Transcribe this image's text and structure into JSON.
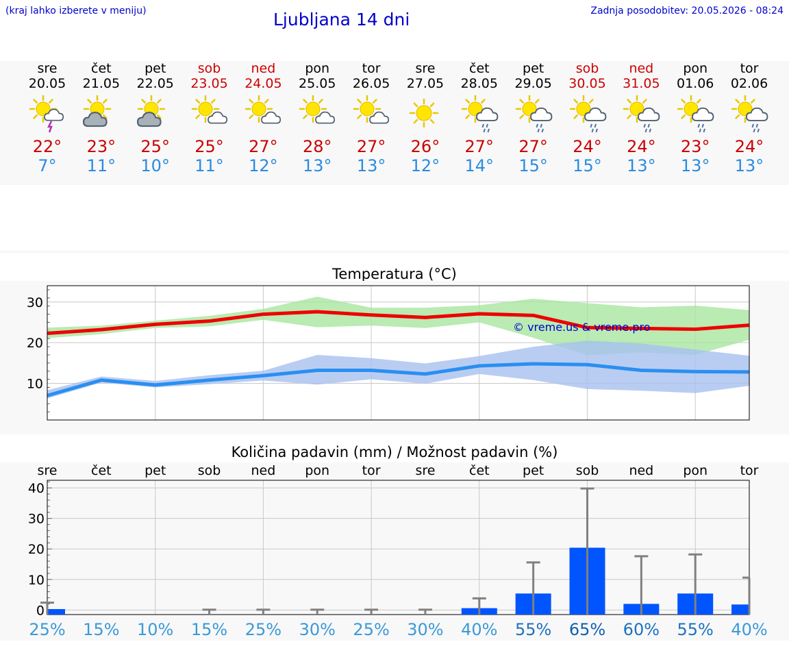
{
  "header": {
    "hint": "(kraj lahko izberete v meniju)",
    "title": "Ljubljana 14 dni",
    "updated": "Zadnja posodobitev: 20.05.2026 - 08:24"
  },
  "forecast": [
    {
      "day": "sre",
      "date": "20.05",
      "icon": "sun-cloud-thunder",
      "max": "22°",
      "min": "7°",
      "weekend": false
    },
    {
      "day": "čet",
      "date": "21.05",
      "icon": "sun-cloud",
      "max": "23°",
      "min": "11°",
      "weekend": false
    },
    {
      "day": "pet",
      "date": "22.05",
      "icon": "sun-cloud",
      "max": "25°",
      "min": "10°",
      "weekend": false
    },
    {
      "day": "sob",
      "date": "23.05",
      "icon": "sun-small-cloud",
      "max": "25°",
      "min": "11°",
      "weekend": true
    },
    {
      "day": "ned",
      "date": "24.05",
      "icon": "sun-small-cloud",
      "max": "27°",
      "min": "12°",
      "weekend": true
    },
    {
      "day": "pon",
      "date": "25.05",
      "icon": "sun-small-cloud",
      "max": "28°",
      "min": "13°",
      "weekend": false
    },
    {
      "day": "tor",
      "date": "26.05",
      "icon": "sun-small-cloud",
      "max": "27°",
      "min": "13°",
      "weekend": false
    },
    {
      "day": "sre",
      "date": "27.05",
      "icon": "sun",
      "max": "26°",
      "min": "12°",
      "weekend": false
    },
    {
      "day": "čet",
      "date": "28.05",
      "icon": "sun-cloud-rain",
      "max": "27°",
      "min": "14°",
      "weekend": false
    },
    {
      "day": "pet",
      "date": "29.05",
      "icon": "sun-cloud-rain",
      "max": "27°",
      "min": "15°",
      "weekend": false
    },
    {
      "day": "sob",
      "date": "30.05",
      "icon": "sun-cloud-rain",
      "max": "24°",
      "min": "15°",
      "weekend": true
    },
    {
      "day": "ned",
      "date": "31.05",
      "icon": "sun-cloud-rain",
      "max": "24°",
      "min": "13°",
      "weekend": true
    },
    {
      "day": "pon",
      "date": "01.06",
      "icon": "sun-cloud-rain",
      "max": "23°",
      "min": "13°",
      "weekend": false
    },
    {
      "day": "tor",
      "date": "02.06",
      "icon": "sun-cloud-rain",
      "max": "24°",
      "min": "13°",
      "weekend": false
    }
  ],
  "chart_data": [
    {
      "type": "line",
      "title": "Temperatura (°C)",
      "watermark": "© vreme.us & vreme.pro",
      "ylim": [
        1,
        34
      ],
      "yticks": [
        10,
        20,
        30
      ],
      "grid": true,
      "series": [
        {
          "values": [
            22.3,
            23.2,
            24.5,
            25.3,
            27.0,
            27.6,
            26.8,
            26.2,
            27.1,
            26.7,
            23.7,
            23.5,
            23.3,
            24.3
          ],
          "upper": [
            23.7,
            24.2,
            25.4,
            26.6,
            28.3,
            31.3,
            28.6,
            28.6,
            29.2,
            30.8,
            29.7,
            28.7,
            29.1,
            28.0
          ],
          "lower": [
            21.1,
            22.1,
            23.6,
            24.0,
            25.6,
            23.8,
            24.2,
            23.6,
            25.0,
            21.2,
            16.9,
            17.6,
            17.0,
            20.7
          ],
          "color": "#ee0000",
          "band_color": "#a8e6a0"
        },
        {
          "values": [
            7.0,
            10.8,
            9.6,
            10.8,
            11.9,
            13.2,
            13.2,
            12.3,
            14.3,
            14.8,
            14.6,
            13.2,
            12.9,
            12.8
          ],
          "upper": [
            8.3,
            11.7,
            10.6,
            12.0,
            13.1,
            17.0,
            16.2,
            14.9,
            16.7,
            19.0,
            20.5,
            19.8,
            18.3,
            16.8
          ],
          "lower": [
            6.3,
            10.2,
            9.0,
            9.8,
            10.7,
            9.7,
            11.0,
            9.9,
            12.3,
            10.8,
            8.6,
            8.2,
            7.6,
            9.4
          ],
          "color": "#2a8ff0",
          "band_color": "#a8c0f0"
        }
      ]
    },
    {
      "type": "bar",
      "title": "Količina padavin (mm) / Možnost padavin (%)",
      "categories": [
        "sre",
        "čet",
        "pet",
        "sob",
        "ned",
        "pon",
        "tor",
        "sre",
        "čet",
        "pet",
        "sob",
        "ned",
        "pon",
        "tor"
      ],
      "values": [
        0.3,
        0,
        0,
        0,
        0,
        0,
        0,
        0,
        0.6,
        5.4,
        20.4,
        2.0,
        5.4,
        1.8
      ],
      "error_upper": [
        2.4,
        0,
        0,
        0.1,
        0.1,
        0.1,
        0.1,
        0.1,
        3.8,
        15.6,
        39.8,
        17.6,
        18.2,
        10.6
      ],
      "probabilities": [
        "25%",
        "15%",
        "10%",
        "15%",
        "25%",
        "30%",
        "25%",
        "30%",
        "40%",
        "55%",
        "65%",
        "60%",
        "55%",
        "40%"
      ],
      "prob_values": [
        25,
        15,
        10,
        15,
        25,
        30,
        25,
        30,
        40,
        55,
        65,
        60,
        55,
        40
      ],
      "ylim": [
        -1.5,
        42.5
      ],
      "yticks": [
        0,
        10,
        20,
        30,
        40
      ],
      "bar_color": "#0055ff",
      "grid": true
    }
  ]
}
